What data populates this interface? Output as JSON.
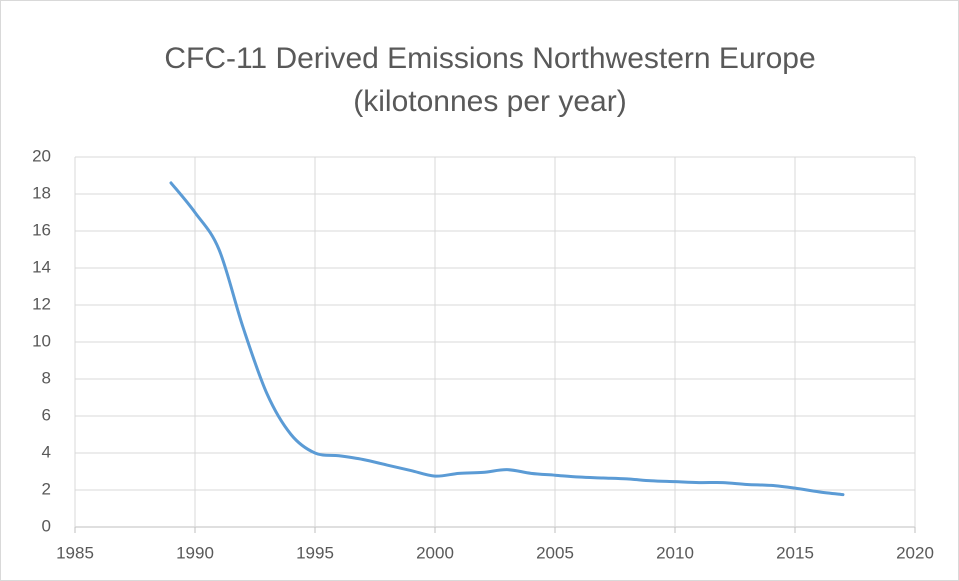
{
  "chart_data": {
    "type": "line",
    "title": "CFC-11 Derived Emissions Northwestern Europe",
    "subtitle": "(kilotonnes per year)",
    "x": [
      1989,
      1990,
      1991,
      1992,
      1993,
      1994,
      1995,
      1996,
      1997,
      1998,
      1999,
      2000,
      2001,
      2002,
      2003,
      2004,
      2005,
      2006,
      2007,
      2008,
      2009,
      2010,
      2011,
      2012,
      2013,
      2014,
      2015,
      2016,
      2017
    ],
    "series": [
      {
        "name": "CFC-11",
        "color": "#5b9bd5",
        "values": [
          18.6,
          17.0,
          15.0,
          10.8,
          7.2,
          5.0,
          4.0,
          3.85,
          3.65,
          3.35,
          3.05,
          2.75,
          2.9,
          2.95,
          3.1,
          2.9,
          2.8,
          2.7,
          2.65,
          2.6,
          2.5,
          2.45,
          2.4,
          2.4,
          2.3,
          2.25,
          2.1,
          1.9,
          1.75
        ]
      }
    ],
    "xlim": [
      1985,
      2020
    ],
    "xticks": [
      1985,
      1990,
      1995,
      2000,
      2005,
      2010,
      2015,
      2020
    ],
    "ylim": [
      0,
      20
    ],
    "yticks": [
      0,
      2,
      4,
      6,
      8,
      10,
      12,
      14,
      16,
      18,
      20
    ],
    "grid": true
  }
}
